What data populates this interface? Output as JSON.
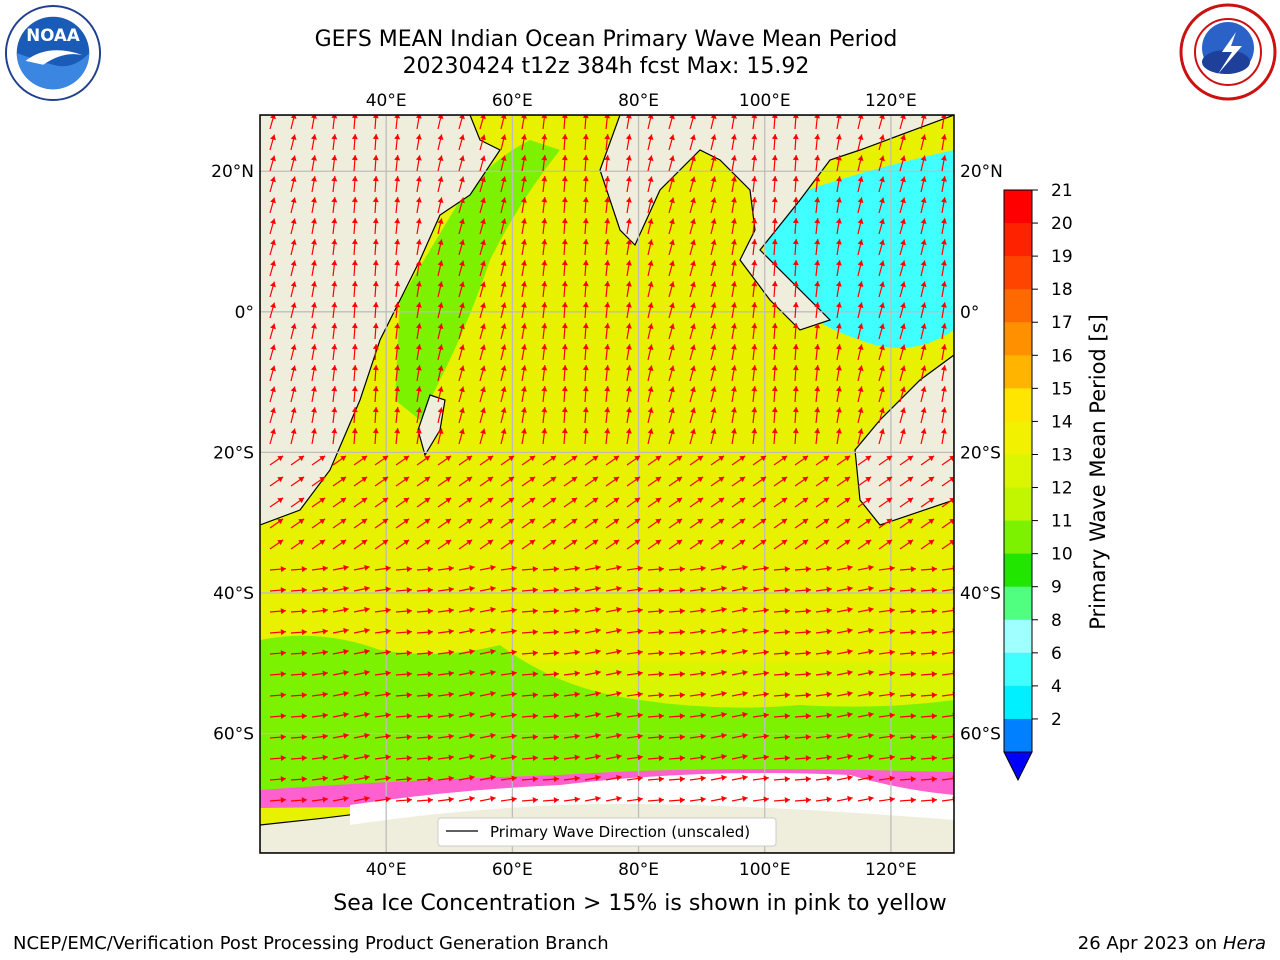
{
  "title": {
    "line1": "GEFS MEAN Indian Ocean Primary Wave Mean Period",
    "line2": "20230424 t12z 384h fcst   Max: 15.92"
  },
  "logos": {
    "left": {
      "icon": "noaa-logo-icon",
      "text": "NOAA"
    },
    "right": {
      "icon": "nws-logo-icon"
    }
  },
  "map": {
    "lon_ticks": [
      "40°E",
      "60°E",
      "80°E",
      "100°E",
      "120°E"
    ],
    "lat_ticks_left": [
      "20°N",
      "0°",
      "20°S",
      "40°S",
      "60°S"
    ],
    "lat_ticks_right": [
      "20°N",
      "0°",
      "20°S",
      "40°S",
      "60°S"
    ],
    "lon_values": [
      40,
      60,
      80,
      100,
      120
    ],
    "lat_values": [
      20,
      0,
      -20,
      -40,
      -60
    ],
    "extent": {
      "lon_min": 20,
      "lon_max": 130,
      "lat_min": -77,
      "lat_max": 28
    },
    "land_color": "#efeedc",
    "ocean_main_color": "#e8f200",
    "arrow_color": "#ff0000",
    "legend_label": "Primary Wave Direction (unscaled)"
  },
  "colorbar": {
    "label": "Primary Wave Mean Period [s]",
    "ticks": [
      "21",
      "20",
      "19",
      "18",
      "17",
      "16",
      "15",
      "14",
      "13",
      "12",
      "11",
      "10",
      "9",
      "8",
      "6",
      "4",
      "2"
    ],
    "colors": [
      "#ff0000",
      "#ff2200",
      "#ff4400",
      "#ff6a00",
      "#ff9000",
      "#ffb400",
      "#ffe600",
      "#f2f200",
      "#dcf500",
      "#c2f500",
      "#7cf200",
      "#20e600",
      "#50ff80",
      "#a0ffff",
      "#40ffff",
      "#00f0ff",
      "#0080ff"
    ],
    "extend_color": "#0000ff"
  },
  "caption": "Sea Ice Concentration > 15% is shown in pink to yellow",
  "footer": {
    "left": "NCEP/EMC/Verification Post Processing Product Generation Branch",
    "right_date": "26 Apr 2023 on ",
    "right_machine": "Hera"
  }
}
